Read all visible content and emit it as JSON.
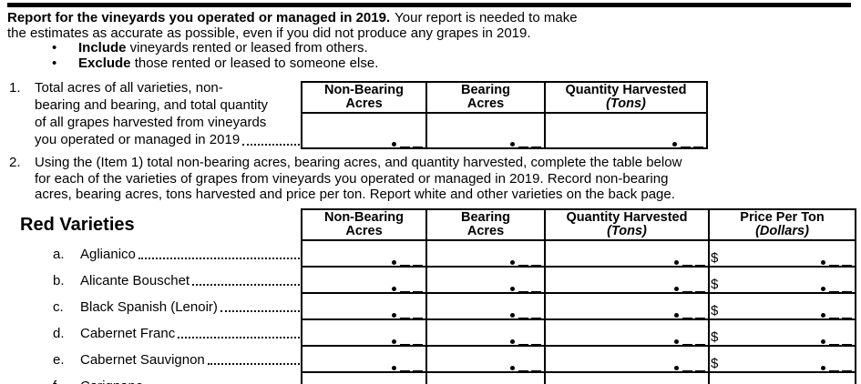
{
  "page": {
    "background": "#ffffff",
    "text_color": "#000000"
  },
  "marks": {
    "decimal_dot": "•",
    "dollar": "$",
    "bullet": "•"
  },
  "intro": {
    "lead_bold": "Report for the vineyards you operated or managed in 2019.",
    "lead_rest": "Your report is needed to make",
    "line2": "the estimates as accurate as possible, even if you did not produce any grapes in 2019.",
    "bullets": [
      {
        "bold": "Include",
        "rest": " vineyards rented or leased from others."
      },
      {
        "bold": "Exclude",
        "rest": " those rented or leased to someone else."
      }
    ]
  },
  "item1": {
    "number": "1.",
    "line1": "Total acres of all varieties, non-",
    "line2": "bearing and bearing, and total quantity",
    "line3": "of all grapes harvested from vineyards",
    "line4": "you operated or managed in 2019",
    "headers": [
      {
        "line1": "Non-Bearing",
        "line2": "Acres"
      },
      {
        "line1": "Bearing",
        "line2": "Acres"
      },
      {
        "line1": "Quantity Harvested",
        "line2": "(Tons)"
      }
    ]
  },
  "item2": {
    "number": "2.",
    "line1": "Using the (Item 1) total non-bearing acres, bearing acres, and quantity harvested, complete the table below",
    "line2": "for each of the varieties of grapes from vineyards you operated or managed in 2019. Record non-bearing",
    "line3": "acres, bearing acres, tons harvested and price per ton.  Report white and other varieties on the back page."
  },
  "red": {
    "title": "Red Varieties",
    "headers": [
      {
        "line1": "Non-Bearing",
        "line2": "Acres"
      },
      {
        "line1": "Bearing",
        "line2": "Acres"
      },
      {
        "line1": "Quantity Harvested",
        "line2": "(Tons)"
      },
      {
        "line1": "Price Per Ton",
        "line2": "(Dollars)"
      }
    ],
    "rows": [
      {
        "letter": "a.",
        "name": "Aglianico"
      },
      {
        "letter": "b.",
        "name": "Alicante Bouschet"
      },
      {
        "letter": "c.",
        "name": "Black Spanish (Lenoir)"
      },
      {
        "letter": "d.",
        "name": "Cabernet Franc"
      },
      {
        "letter": "e.",
        "name": "Cabernet Sauvignon"
      },
      {
        "letter": "f.",
        "name": "Carignane"
      }
    ]
  }
}
